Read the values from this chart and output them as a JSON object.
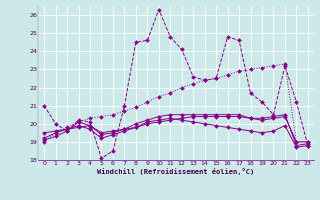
{
  "xlabel": "Windchill (Refroidissement éolien,°C)",
  "bg_color": "#cde8e8",
  "line_color": "#880088",
  "grid_color": "#aacccc",
  "xlim": [
    -0.5,
    23.5
  ],
  "ylim": [
    18,
    26.5
  ],
  "xticks": [
    0,
    1,
    2,
    3,
    4,
    5,
    6,
    7,
    8,
    9,
    10,
    11,
    12,
    13,
    14,
    15,
    16,
    17,
    18,
    19,
    20,
    21,
    22,
    23
  ],
  "yticks": [
    18,
    19,
    20,
    21,
    22,
    23,
    24,
    25,
    26
  ],
  "line1_x": [
    0,
    1,
    2,
    3,
    4,
    5,
    6,
    7,
    8,
    9,
    10,
    11,
    12,
    13,
    14,
    15,
    16,
    17,
    18,
    19,
    20,
    21,
    22,
    23
  ],
  "line1_y": [
    21.0,
    20.0,
    19.6,
    20.2,
    20.1,
    18.1,
    18.5,
    21.0,
    24.5,
    24.6,
    26.3,
    24.8,
    24.1,
    22.6,
    22.4,
    22.5,
    24.8,
    24.6,
    21.7,
    21.2,
    20.5,
    23.2,
    21.2,
    18.8
  ],
  "line2_x": [
    0,
    1,
    2,
    3,
    4,
    5,
    6,
    7,
    8,
    9,
    10,
    11,
    12,
    13,
    14,
    15,
    16,
    17,
    18,
    19,
    20,
    21,
    22,
    23
  ],
  "line2_y": [
    19.1,
    19.3,
    19.6,
    20.1,
    19.9,
    19.4,
    19.5,
    19.7,
    20.0,
    20.2,
    20.4,
    20.5,
    20.5,
    20.5,
    20.5,
    20.5,
    20.5,
    20.5,
    20.3,
    20.3,
    20.4,
    20.5,
    18.8,
    18.9
  ],
  "line3_x": [
    0,
    1,
    2,
    3,
    4,
    5,
    6,
    7,
    8,
    9,
    10,
    11,
    12,
    13,
    14,
    15,
    16,
    17,
    18,
    19,
    20,
    21,
    22,
    23
  ],
  "line3_y": [
    19.5,
    19.6,
    19.7,
    19.8,
    19.9,
    19.5,
    19.6,
    19.7,
    19.8,
    20.0,
    20.1,
    20.2,
    20.3,
    20.4,
    20.4,
    20.4,
    20.4,
    20.4,
    20.3,
    20.2,
    20.3,
    20.4,
    19.0,
    19.0
  ],
  "line4_x": [
    0,
    1,
    2,
    3,
    4,
    5,
    6,
    7,
    8,
    9,
    10,
    11,
    12,
    13,
    14,
    15,
    16,
    17,
    18,
    19,
    20,
    21,
    22,
    23
  ],
  "line4_y": [
    19.2,
    19.5,
    19.7,
    19.9,
    19.7,
    19.2,
    19.4,
    19.6,
    19.8,
    20.1,
    20.2,
    20.3,
    20.2,
    20.1,
    20.0,
    19.9,
    19.8,
    19.7,
    19.6,
    19.5,
    19.6,
    19.9,
    18.7,
    18.8
  ],
  "line_dotted_x": [
    0,
    1,
    2,
    3,
    4,
    5,
    6,
    7,
    8,
    9,
    10,
    11,
    12,
    13,
    14,
    15,
    16,
    17,
    18,
    19,
    20,
    21,
    22,
    23
  ],
  "line_dotted_y": [
    19.0,
    19.5,
    19.8,
    20.1,
    20.3,
    20.4,
    20.5,
    20.7,
    20.9,
    21.2,
    21.5,
    21.7,
    22.0,
    22.2,
    22.4,
    22.5,
    22.7,
    22.9,
    23.0,
    23.1,
    23.2,
    23.3,
    19.0,
    19.0
  ]
}
